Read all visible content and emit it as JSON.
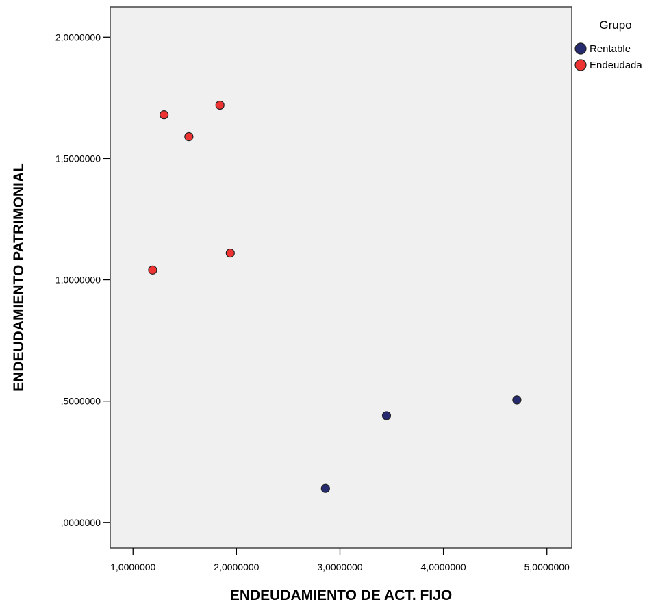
{
  "chart_data": {
    "type": "scatter",
    "title": "",
    "xlabel": "ENDEUDAMIENTO DE ACT. FIJO",
    "ylabel": "ENDEUDAMIENTO PATRIMONIAL",
    "xlim": [
      0.78,
      5.24
    ],
    "ylim": [
      -0.105,
      2.125
    ],
    "x_ticks": [
      {
        "value": 1,
        "label": "1,0000000"
      },
      {
        "value": 2,
        "label": "2,0000000"
      },
      {
        "value": 3,
        "label": "3,0000000"
      },
      {
        "value": 4,
        "label": "4,0000000"
      },
      {
        "value": 5,
        "label": "5,0000000"
      }
    ],
    "y_ticks": [
      {
        "value": 0,
        "label": ",0000000"
      },
      {
        "value": 0.5,
        "label": ",5000000"
      },
      {
        "value": 1,
        "label": "1,0000000"
      },
      {
        "value": 1.5,
        "label": "1,5000000"
      },
      {
        "value": 2,
        "label": "2,0000000"
      }
    ],
    "grid": false,
    "legend": {
      "title": "Grupo",
      "placement": "top-right"
    },
    "series": [
      {
        "name": "Rentable",
        "color": "#262a6e",
        "points": [
          {
            "x": 2.86,
            "y": 0.14
          },
          {
            "x": 3.45,
            "y": 0.44
          },
          {
            "x": 4.71,
            "y": 0.505
          }
        ]
      },
      {
        "name": "Endeudada",
        "color": "#ee3333",
        "points": [
          {
            "x": 1.3,
            "y": 1.68
          },
          {
            "x": 1.54,
            "y": 1.59
          },
          {
            "x": 1.84,
            "y": 1.72
          },
          {
            "x": 1.19,
            "y": 1.04
          },
          {
            "x": 1.94,
            "y": 1.11
          }
        ]
      }
    ]
  }
}
